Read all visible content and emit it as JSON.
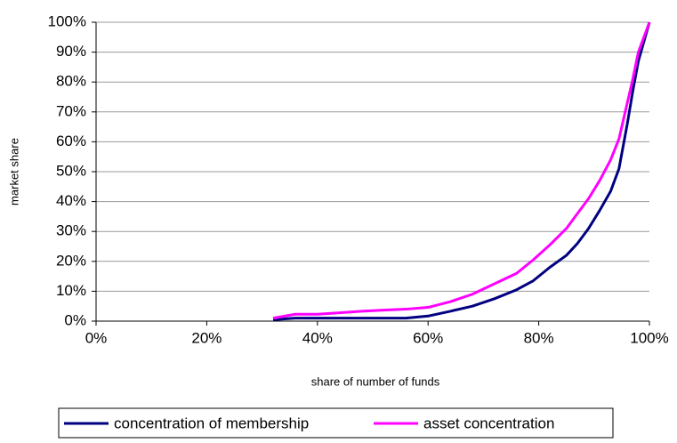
{
  "chart_data": {
    "type": "line",
    "x_label": "share of number of funds",
    "y_label": "market share",
    "xlim": [
      0,
      100
    ],
    "ylim": [
      0,
      100
    ],
    "xticks": [
      {
        "value": 0,
        "label": "0%"
      },
      {
        "value": 20,
        "label": "20%"
      },
      {
        "value": 40,
        "label": "40%"
      },
      {
        "value": 60,
        "label": "60%"
      },
      {
        "value": 80,
        "label": "80%"
      },
      {
        "value": 100,
        "label": "100%"
      }
    ],
    "yticks": [
      {
        "value": 0,
        "label": "0%"
      },
      {
        "value": 10,
        "label": "10%"
      },
      {
        "value": 20,
        "label": "20%"
      },
      {
        "value": 30,
        "label": "30%"
      },
      {
        "value": 40,
        "label": "40%"
      },
      {
        "value": 50,
        "label": "50%"
      },
      {
        "value": 60,
        "label": "60%"
      },
      {
        "value": 70,
        "label": "70%"
      },
      {
        "value": 80,
        "label": "80%"
      },
      {
        "value": 90,
        "label": "90%"
      },
      {
        "value": 100,
        "label": "100%"
      }
    ],
    "grid": true,
    "legend": "bottom",
    "series": [
      {
        "name": "concentration of membership",
        "color": "#000080",
        "x": [
          32,
          36,
          40,
          44,
          48,
          52,
          56,
          60,
          64,
          68,
          72,
          76,
          79,
          82,
          85,
          87,
          89,
          91,
          93,
          94.5,
          96,
          97,
          98,
          100
        ],
        "values": [
          0.5,
          1,
          1,
          1,
          1,
          1,
          1,
          1.7,
          3.3,
          5,
          7.5,
          10.5,
          13.5,
          18,
          22,
          26,
          31,
          37,
          43.5,
          51,
          66,
          77,
          87,
          100
        ]
      },
      {
        "name": "asset concentration",
        "color": "#ff00ff",
        "x": [
          32,
          36,
          40,
          44,
          48,
          52,
          56,
          60,
          64,
          68,
          72,
          76,
          79,
          82,
          85,
          87,
          89,
          91,
          93,
          94.5,
          96,
          97,
          98,
          100
        ],
        "values": [
          1,
          2.3,
          2.3,
          2.8,
          3.3,
          3.7,
          4,
          4.6,
          6.5,
          9,
          12.5,
          16,
          20.5,
          25.5,
          31,
          36,
          41,
          47,
          54,
          61,
          73,
          81,
          90,
          100
        ]
      }
    ]
  }
}
